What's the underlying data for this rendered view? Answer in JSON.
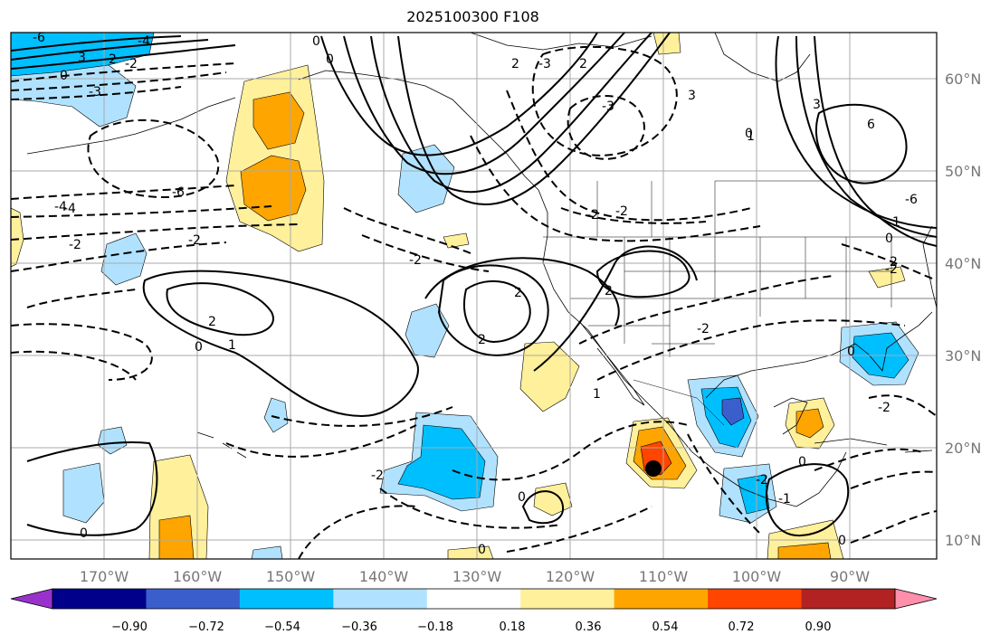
{
  "title": "2025100300 F108",
  "colors": {
    "ocean": "#ffffff",
    "grid": "#aaaaaa",
    "contour": "#000000",
    "coast": "#000000",
    "lat_label": "#777777"
  },
  "map": {
    "lat_labels": [
      "60°N",
      "50°N",
      "40°N",
      "30°N",
      "20°N",
      "10°N"
    ],
    "lon_labels": [
      "170°W",
      "160°W",
      "150°W",
      "140°W",
      "130°W",
      "120°W",
      "110°W",
      "100°W",
      "90°W"
    ],
    "storm_marker": "storm-center-dot",
    "contour_labels": [
      "-6",
      "3",
      "-2",
      "-2",
      "-4",
      "-3",
      "0",
      "0",
      "2",
      "-3",
      "2",
      "-3",
      "-4",
      "3",
      "0",
      "-6",
      "6",
      "-6",
      "-4",
      "-2",
      "-2",
      "-2",
      "-2",
      "-2",
      "2",
      "-2",
      "2",
      "0",
      "1",
      "2",
      "2",
      "1",
      "-1",
      "-2",
      "-2",
      "0",
      "1",
      "0",
      "0",
      "-2",
      "0",
      "-2",
      "0",
      "0",
      "2",
      "1",
      "0",
      "0",
      "3"
    ]
  },
  "colorbar": {
    "ticks": [
      "−0.90",
      "−0.72",
      "−0.54",
      "−0.36",
      "−0.18",
      "0.18",
      "0.36",
      "0.54",
      "0.72",
      "0.90"
    ],
    "bins": [
      "#9932cc",
      "#00008b",
      "#3a5fcd",
      "#00bfff",
      "#b0e2ff",
      "#ffffff",
      "#fff09b",
      "#ffa500",
      "#ff4500",
      "#b22222",
      "#ff8fab"
    ]
  }
}
